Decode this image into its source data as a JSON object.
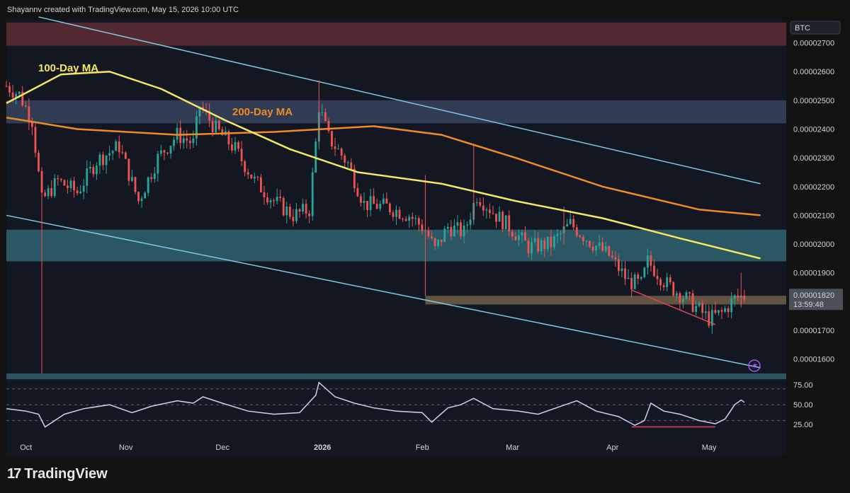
{
  "header": {
    "attribution": "Shayannv created with TradingView.com, May 15, 2026 10:00 UTC"
  },
  "brand": {
    "logo_glyph": "17",
    "name": "TradingView"
  },
  "colors": {
    "bg": "#131722",
    "panel_bg": "#121212",
    "bull": "#26a69a",
    "bear": "#ef5350",
    "ma100": "#f5e663",
    "ma200": "#f08a24",
    "channel": "#7ec8e3",
    "zone_red": "#5b2b33",
    "zone_blue_top": "#34405a",
    "zone_teal": "#2f5d6a",
    "zone_support": "#6b5a44",
    "rsi": "#c9d3f0",
    "divergence": "#e0435a",
    "price_tag": "#4a4f5a"
  },
  "chart_data": [
    {
      "type": "candlestick",
      "symbol_label": "BTC",
      "y_axis_ticks": [
        "0.00002700",
        "0.00002600",
        "0.00002500",
        "0.00002400",
        "0.00002300",
        "0.00002200",
        "0.00002100",
        "0.00002000",
        "0.00001900",
        "0.00001700",
        "0.00001600"
      ],
      "ylim": [
        1.55e-05,
        2.78e-05
      ],
      "x_axis_labels": [
        "Oct",
        "Nov",
        "Dec",
        "2026",
        "Feb",
        "Mar",
        "Apr",
        "May"
      ],
      "x_range": [
        "2025-09-28",
        "2026-05-28"
      ],
      "current_price": "0.00001820",
      "countdown": "13:59:48",
      "annotations": [
        "100-Day MA",
        "200-Day MA"
      ],
      "ohlc_anchors": [
        [
          "2025-09-28",
          2.55e-05
        ],
        [
          "2025-10-02",
          2.52e-05
        ],
        [
          "2025-10-06",
          2.43e-05
        ],
        [
          "2025-10-09",
          2.15e-05
        ],
        [
          "2025-10-14",
          2.22e-05
        ],
        [
          "2025-10-20",
          2.18e-05
        ],
        [
          "2025-10-26",
          2.29e-05
        ],
        [
          "2025-11-02",
          2.34e-05
        ],
        [
          "2025-11-08",
          2.15e-05
        ],
        [
          "2025-11-14",
          2.3e-05
        ],
        [
          "2025-11-20",
          2.38e-05
        ],
        [
          "2025-11-25",
          2.35e-05
        ],
        [
          "2025-11-27",
          2.48e-05
        ],
        [
          "2025-12-02",
          2.4e-05
        ],
        [
          "2025-12-08",
          2.33e-05
        ],
        [
          "2025-12-14",
          2.22e-05
        ],
        [
          "2025-12-20",
          2.15e-05
        ],
        [
          "2025-12-26",
          2.1e-05
        ],
        [
          "2025-12-31",
          2.12e-05
        ],
        [
          "2026-01-02",
          2.35e-05
        ],
        [
          "2026-01-03",
          2.48e-05
        ],
        [
          "2026-01-06",
          2.37e-05
        ],
        [
          "2026-01-12",
          2.28e-05
        ],
        [
          "2026-01-17",
          2.14e-05
        ],
        [
          "2026-01-24",
          2.13e-05
        ],
        [
          "2026-01-31",
          2.1e-05
        ],
        [
          "2026-02-05",
          2.05e-05
        ],
        [
          "2026-02-08",
          1.98e-05
        ],
        [
          "2026-02-12",
          2.06e-05
        ],
        [
          "2026-02-17",
          2.04e-05
        ],
        [
          "2026-02-21",
          2.17e-05
        ],
        [
          "2026-02-27",
          2.1e-05
        ],
        [
          "2026-03-04",
          2.05e-05
        ],
        [
          "2026-03-09",
          1.99e-05
        ],
        [
          "2026-03-16",
          2e-05
        ],
        [
          "2026-03-22",
          2.07e-05
        ],
        [
          "2026-03-28",
          2.01e-05
        ],
        [
          "2026-04-03",
          1.96e-05
        ],
        [
          "2026-04-09",
          1.87e-05
        ],
        [
          "2026-04-13",
          1.86e-05
        ],
        [
          "2026-04-15",
          1.94e-05
        ],
        [
          "2026-04-21",
          1.86e-05
        ],
        [
          "2026-04-27",
          1.81e-05
        ],
        [
          "2026-05-04",
          1.74e-05
        ],
        [
          "2026-05-08",
          1.76e-05
        ],
        [
          "2026-05-12",
          1.81e-05
        ],
        [
          "2026-05-15",
          1.82e-05
        ]
      ],
      "ma100": [
        [
          "2025-09-28",
          2.49e-05
        ],
        [
          "2025-10-15",
          2.59e-05
        ],
        [
          "2025-10-30",
          2.6e-05
        ],
        [
          "2025-11-15",
          2.54e-05
        ],
        [
          "2025-12-05",
          2.43e-05
        ],
        [
          "2025-12-25",
          2.33e-05
        ],
        [
          "2026-01-15",
          2.25e-05
        ],
        [
          "2026-02-10",
          2.21e-05
        ],
        [
          "2026-03-05",
          2.15e-05
        ],
        [
          "2026-04-01",
          2.09e-05
        ],
        [
          "2026-04-25",
          2.02e-05
        ],
        [
          "2026-05-20",
          1.95e-05
        ]
      ],
      "ma200": [
        [
          "2025-09-28",
          2.44e-05
        ],
        [
          "2025-10-20",
          2.4e-05
        ],
        [
          "2025-11-20",
          2.38e-05
        ],
        [
          "2025-12-20",
          2.39e-05
        ],
        [
          "2026-01-20",
          2.41e-05
        ],
        [
          "2026-02-10",
          2.38e-05
        ],
        [
          "2026-03-05",
          2.3e-05
        ],
        [
          "2026-04-01",
          2.2e-05
        ],
        [
          "2026-05-01",
          2.12e-05
        ],
        [
          "2026-05-20",
          2.1e-05
        ]
      ],
      "channel_upper": [
        [
          "2025-10-08",
          2.79e-05
        ],
        [
          "2026-05-20",
          2.21e-05
        ]
      ],
      "channel_lower": [
        [
          "2025-09-28",
          2.1e-05
        ],
        [
          "2026-05-20",
          1.57e-05
        ]
      ],
      "zones": [
        {
          "name": "supply-zone",
          "y": [
            2.69e-05,
            2.77e-05
          ]
        },
        {
          "name": "upper-range-zone",
          "y": [
            2.42e-05,
            2.5e-05
          ]
        },
        {
          "name": "mid-range-zone",
          "y": [
            1.94e-05,
            2.05e-05
          ]
        },
        {
          "name": "support-zone",
          "y": [
            1.79e-05,
            1.82e-05
          ],
          "start": "2026-02-05"
        },
        {
          "name": "bottom-zone",
          "y": [
            1.53e-05,
            1.55e-05
          ]
        }
      ],
      "price_divergence": [
        [
          "2026-04-10",
          1.84e-05
        ],
        [
          "2026-05-06",
          1.72e-05
        ]
      ]
    },
    {
      "type": "line",
      "name": "RSI",
      "y_axis_ticks": [
        "75.00",
        "50.00",
        "25.00"
      ],
      "ylim": [
        10,
        85
      ],
      "levels": [
        70,
        50,
        30
      ],
      "values": [
        [
          "2025-09-28",
          45
        ],
        [
          "2025-10-04",
          42
        ],
        [
          "2025-10-08",
          38
        ],
        [
          "2025-10-10",
          22
        ],
        [
          "2025-10-16",
          38
        ],
        [
          "2025-10-22",
          45
        ],
        [
          "2025-10-30",
          50
        ],
        [
          "2025-11-06",
          40
        ],
        [
          "2025-11-12",
          48
        ],
        [
          "2025-11-20",
          55
        ],
        [
          "2025-11-25",
          52
        ],
        [
          "2025-11-28",
          60
        ],
        [
          "2025-12-04",
          52
        ],
        [
          "2025-12-12",
          42
        ],
        [
          "2025-12-20",
          38
        ],
        [
          "2025-12-28",
          40
        ],
        [
          "2026-01-02",
          62
        ],
        [
          "2026-01-03",
          78
        ],
        [
          "2026-01-08",
          60
        ],
        [
          "2026-01-14",
          52
        ],
        [
          "2026-01-20",
          46
        ],
        [
          "2026-01-27",
          42
        ],
        [
          "2026-02-04",
          40
        ],
        [
          "2026-02-07",
          28
        ],
        [
          "2026-02-12",
          46
        ],
        [
          "2026-02-16",
          50
        ],
        [
          "2026-02-20",
          58
        ],
        [
          "2026-02-26",
          45
        ],
        [
          "2026-03-06",
          42
        ],
        [
          "2026-03-12",
          38
        ],
        [
          "2026-03-19",
          48
        ],
        [
          "2026-03-24",
          55
        ],
        [
          "2026-03-30",
          42
        ],
        [
          "2026-04-06",
          35
        ],
        [
          "2026-04-11",
          24
        ],
        [
          "2026-04-14",
          30
        ],
        [
          "2026-04-16",
          52
        ],
        [
          "2026-04-20",
          42
        ],
        [
          "2026-04-25",
          38
        ],
        [
          "2026-05-01",
          30
        ],
        [
          "2026-05-06",
          26
        ],
        [
          "2026-05-09",
          32
        ],
        [
          "2026-05-12",
          50
        ],
        [
          "2026-05-14",
          56
        ],
        [
          "2026-05-15",
          53
        ]
      ],
      "divergence": [
        [
          "2026-04-10",
          22
        ],
        [
          "2026-05-06",
          22
        ]
      ]
    }
  ]
}
